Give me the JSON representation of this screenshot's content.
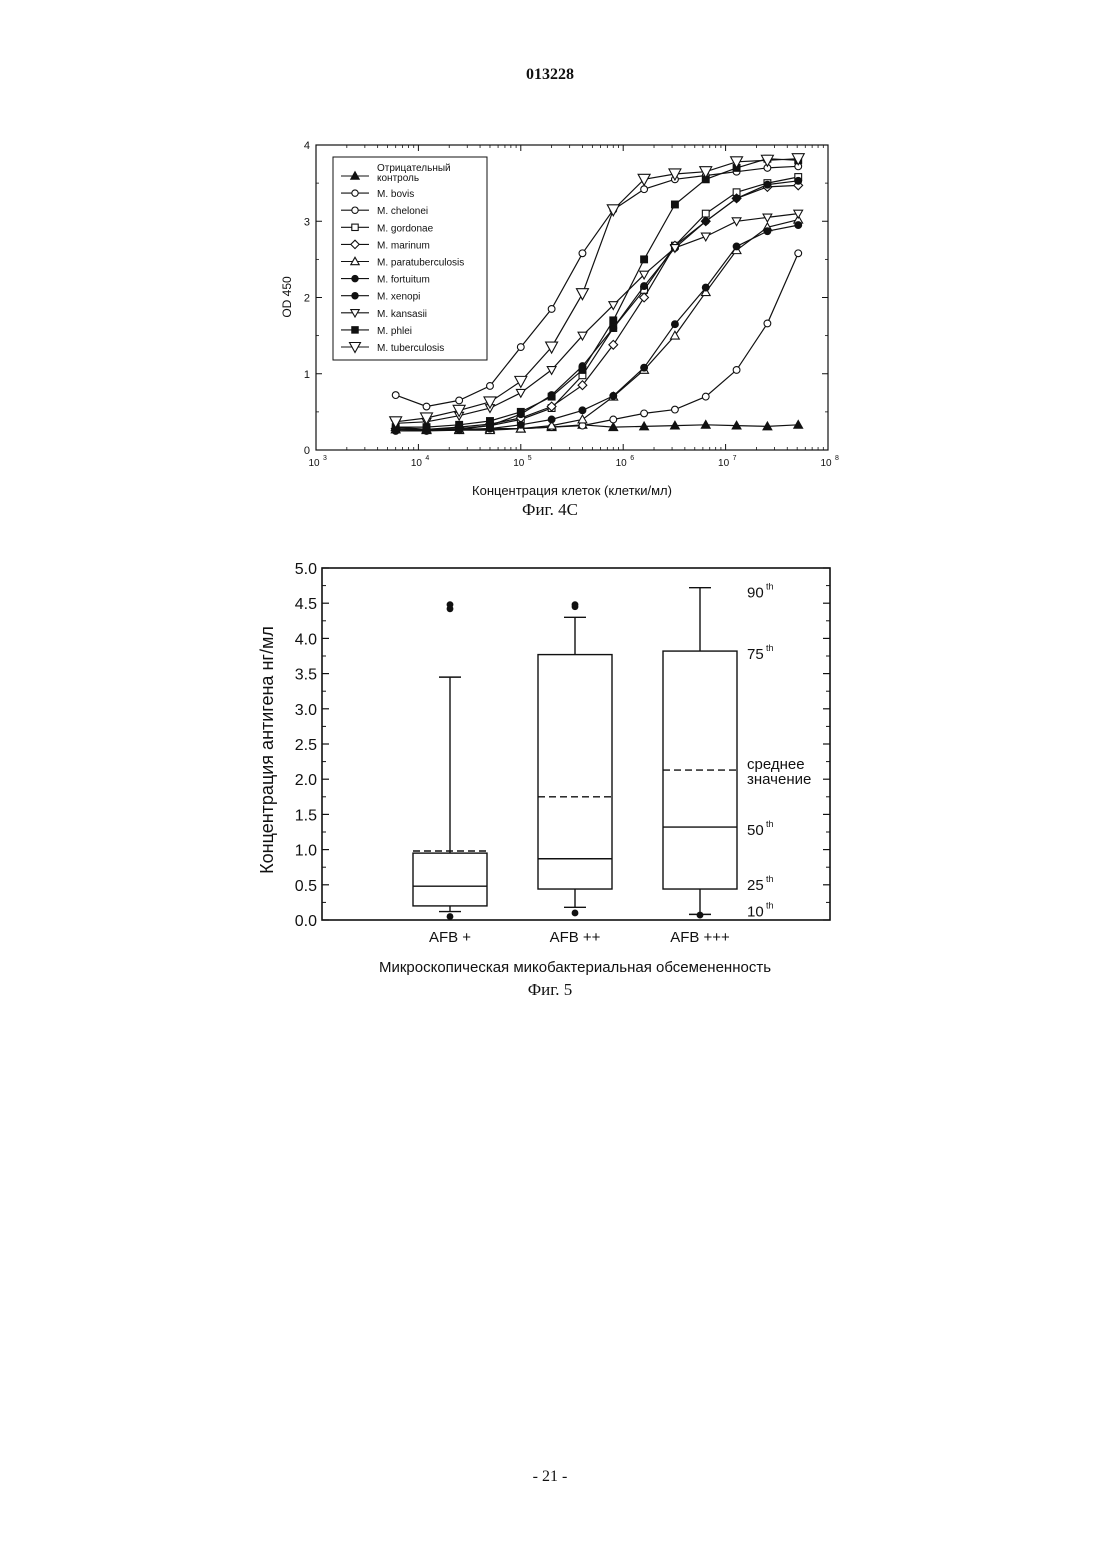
{
  "page": {
    "doc_number": "013228",
    "page_number": "- 21 -"
  },
  "chart_data": [
    {
      "type": "line",
      "figure_caption": "Фиг. 4C",
      "xlabel": "Концентрация клеток (клетки/мл)",
      "ylabel": "OD 450",
      "xscale": "log",
      "xlim": [
        1000,
        100000000
      ],
      "ylim": [
        0,
        4
      ],
      "xticks": [
        1000,
        10000,
        100000,
        1000000,
        10000000,
        100000000
      ],
      "xtick_bases": [
        "10",
        "10",
        "10",
        "10",
        "10",
        "10"
      ],
      "xtick_exps": [
        "3",
        "4",
        "5",
        "6",
        "7",
        "8"
      ],
      "yticks": [
        "0",
        "1",
        "2",
        "3",
        "4"
      ],
      "legend_position": "top-left",
      "grid": false,
      "x": [
        6000,
        12000,
        25000,
        50000,
        100000,
        200000,
        400000,
        800000,
        1600000,
        3200000,
        6400000,
        12800000,
        25600000,
        51200000
      ],
      "series": [
        {
          "name": "Отрицательный контроль",
          "marker": "triangle-filled",
          "values": [
            0.3,
            0.27,
            0.27,
            0.28,
            0.28,
            0.3,
            0.33,
            0.3,
            0.31,
            0.32,
            0.33,
            0.32,
            0.31,
            0.33
          ]
        },
        {
          "name": "M. bovis",
          "marker": "circle-open",
          "values": [
            0.72,
            0.57,
            0.65,
            0.84,
            1.35,
            1.85,
            2.58,
            3.15,
            3.42,
            3.55,
            3.6,
            3.65,
            3.7,
            3.72
          ]
        },
        {
          "name": "M. chelonei",
          "marker": "circle-open",
          "values": [
            0.27,
            0.26,
            0.27,
            0.27,
            0.28,
            0.3,
            0.32,
            0.4,
            0.48,
            0.53,
            0.7,
            1.05,
            1.66,
            2.58
          ]
        },
        {
          "name": "M. gordonae",
          "marker": "square-open",
          "values": [
            0.27,
            0.27,
            0.28,
            0.32,
            0.4,
            0.55,
            0.98,
            1.6,
            2.1,
            2.68,
            3.1,
            3.38,
            3.5,
            3.58
          ]
        },
        {
          "name": "M. marinum",
          "marker": "diamond-open",
          "values": [
            0.28,
            0.27,
            0.3,
            0.34,
            0.42,
            0.57,
            0.85,
            1.38,
            2.0,
            2.68,
            3.0,
            3.3,
            3.45,
            3.47
          ]
        },
        {
          "name": "M. paratuberculosis",
          "marker": "triangle-open",
          "values": [
            0.27,
            0.26,
            0.26,
            0.26,
            0.28,
            0.32,
            0.4,
            0.7,
            1.05,
            1.5,
            2.07,
            2.62,
            2.92,
            3.02
          ]
        },
        {
          "name": "M. fortuitum",
          "marker": "circle-filled",
          "values": [
            0.27,
            0.26,
            0.27,
            0.32,
            0.47,
            0.72,
            1.1,
            1.6,
            2.15,
            2.65,
            3.0,
            3.3,
            3.48,
            3.53
          ]
        },
        {
          "name": "M. xenopi",
          "marker": "circle-filled",
          "values": [
            0.25,
            0.25,
            0.26,
            0.28,
            0.33,
            0.4,
            0.52,
            0.71,
            1.08,
            1.65,
            2.13,
            2.67,
            2.87,
            2.95
          ]
        },
        {
          "name": "M. kansasii",
          "marker": "triangle-down-open",
          "values": [
            0.35,
            0.37,
            0.45,
            0.55,
            0.75,
            1.05,
            1.5,
            1.9,
            2.3,
            2.65,
            2.8,
            3.0,
            3.05,
            3.1
          ]
        },
        {
          "name": "M. phlei",
          "marker": "square-filled",
          "values": [
            0.3,
            0.3,
            0.33,
            0.38,
            0.5,
            0.7,
            1.05,
            1.7,
            2.5,
            3.22,
            3.55,
            3.7,
            3.82,
            3.8
          ]
        },
        {
          "name": "M. tuberculosis",
          "marker": "triangle-down-open",
          "values": [
            0.37,
            0.42,
            0.52,
            0.63,
            0.9,
            1.35,
            2.05,
            3.15,
            3.55,
            3.62,
            3.65,
            3.78,
            3.8,
            3.82
          ]
        }
      ]
    },
    {
      "type": "box",
      "figure_caption": "Фиг. 5",
      "xlabel": "Микроскопическая микобактериальная обсемененность",
      "ylabel": "Концентрация антигена нг/мл",
      "ylim": [
        0,
        5
      ],
      "yticks": [
        "0.0",
        "0.5",
        "1.0",
        "1.5",
        "2.0",
        "2.5",
        "3.0",
        "3.5",
        "4.0",
        "4.5",
        "5.0"
      ],
      "categories": [
        "AFB +",
        "AFB ++",
        "AFB +++"
      ],
      "boxes": [
        {
          "p10": 0.12,
          "p25": 0.2,
          "median": 0.48,
          "mean": 0.98,
          "p75": 0.95,
          "p90": 3.45,
          "outliers": [
            4.48,
            4.42,
            0.05
          ]
        },
        {
          "p10": 0.18,
          "p25": 0.44,
          "median": 0.87,
          "mean": 1.75,
          "p75": 3.77,
          "p90": 4.3,
          "outliers": [
            4.48,
            4.45,
            0.1
          ]
        },
        {
          "p10": 0.08,
          "p25": 0.44,
          "median": 1.32,
          "mean": 2.13,
          "p75": 3.82,
          "p90": 4.72,
          "outliers": [
            0.07
          ]
        }
      ],
      "annotations": {
        "p90_base": "90",
        "p90_sup": "th",
        "p75_base": "75",
        "p75_sup": "th",
        "p50_base": "50",
        "p50_sup": "th",
        "p25_base": "25",
        "p25_sup": "th",
        "p10_base": "10",
        "p10_sup": "th",
        "mean_line1": "среднее",
        "mean_line2": "значение"
      }
    }
  ]
}
